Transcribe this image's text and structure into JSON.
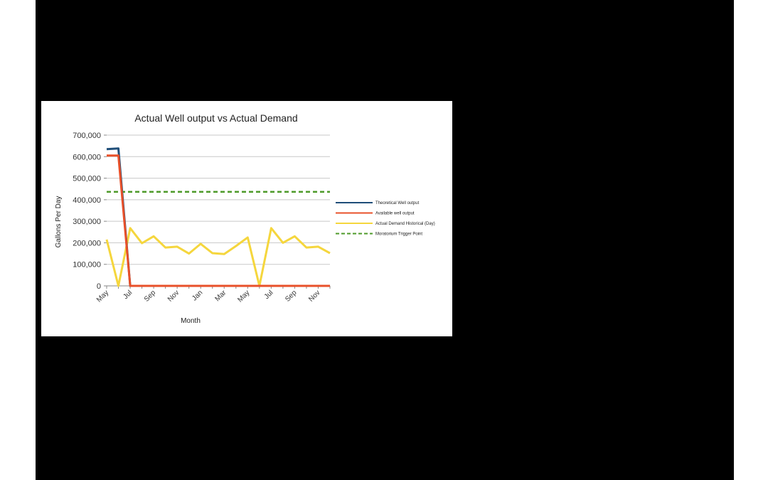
{
  "chart_data": {
    "type": "line",
    "title": "Actual Well output vs Actual Demand",
    "xlabel": "Month",
    "ylabel": "Gallons Per Day",
    "ylim": [
      0,
      700000
    ],
    "y_ticks": [
      "0",
      "100,000",
      "200,000",
      "300,000",
      "400,000",
      "500,000",
      "600,000",
      "700,000"
    ],
    "y_tick_values": [
      0,
      100000,
      200000,
      300000,
      400000,
      500000,
      600000,
      700000
    ],
    "x": [
      "May",
      "Jun",
      "Jul",
      "Aug",
      "Sep",
      "Oct",
      "Nov",
      "Dec",
      "Jan",
      "Feb",
      "Mar",
      "Apr",
      "May",
      "Jun",
      "Jul",
      "Aug",
      "Sep",
      "Oct",
      "Nov",
      "Dec"
    ],
    "x_tick_labels": [
      "May",
      "",
      "Jul",
      "",
      "Sep",
      "",
      "Nov",
      "",
      "Jan",
      "",
      "Mar",
      "",
      "May",
      "",
      "Jul",
      "",
      "Sep",
      "",
      "Nov",
      ""
    ],
    "grid": true,
    "legend_position": "right",
    "series": [
      {
        "name": "Theoretical Well output",
        "color": "#1f4e79",
        "dashed": false,
        "values": [
          635000,
          638000,
          0,
          0,
          0,
          0,
          0,
          0,
          0,
          0,
          0,
          0,
          0,
          0,
          0,
          0,
          0,
          0,
          0,
          0
        ]
      },
      {
        "name": "Available well output",
        "color": "#e8502a",
        "dashed": false,
        "values": [
          605000,
          605000,
          0,
          0,
          0,
          0,
          0,
          0,
          0,
          0,
          0,
          0,
          0,
          0,
          0,
          0,
          0,
          0,
          0,
          0
        ]
      },
      {
        "name": "Actual Demand Historical (Day)",
        "color": "#f5d63d",
        "dashed": false,
        "values": [
          215000,
          0,
          268000,
          198000,
          230000,
          178000,
          182000,
          150000,
          195000,
          152000,
          148000,
          185000,
          225000,
          0,
          268000,
          200000,
          230000,
          178000,
          182000,
          152000
        ]
      },
      {
        "name": "Moratorium Trigger Point",
        "color": "#4e9a2a",
        "dashed": true,
        "values": [
          437000,
          437000,
          437000,
          437000,
          437000,
          437000,
          437000,
          437000,
          437000,
          437000,
          437000,
          437000,
          437000,
          437000,
          437000,
          437000,
          437000,
          437000,
          437000,
          437000
        ]
      }
    ]
  }
}
